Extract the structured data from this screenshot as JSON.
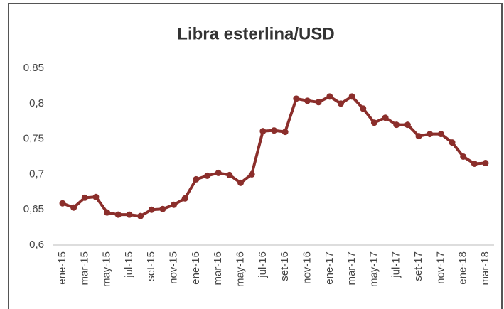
{
  "chart_data": {
    "type": "line",
    "title": "Libra esterlina/USD",
    "categories": [
      "ene-15",
      null,
      "mar-15",
      null,
      "may-15",
      null,
      "jul-15",
      null,
      "set-15",
      null,
      "nov-15",
      null,
      "ene-16",
      null,
      "mar-16",
      null,
      "may-16",
      null,
      "jul-16",
      null,
      "set-16",
      null,
      "nov-16",
      null,
      "ene-17",
      null,
      "mar-17",
      null,
      "may-17",
      null,
      "jul-17",
      null,
      "set-17",
      null,
      "nov-17",
      null,
      "ene-18",
      null,
      "mar-18"
    ],
    "series": [
      {
        "name": "Libra esterlina/USD",
        "color": "#8b2e2b",
        "values": [
          0.659,
          0.653,
          0.667,
          0.668,
          0.646,
          0.643,
          0.643,
          0.641,
          0.65,
          0.651,
          0.657,
          0.666,
          0.693,
          0.698,
          0.702,
          0.699,
          0.688,
          0.7,
          0.761,
          0.762,
          0.76,
          0.807,
          0.804,
          0.802,
          0.81,
          0.8,
          0.81,
          0.793,
          0.773,
          0.78,
          0.77,
          0.77,
          0.754,
          0.757,
          0.757,
          0.745,
          0.725,
          0.715,
          0.716
        ]
      }
    ],
    "ylim": [
      0.6,
      0.85
    ],
    "yticks": [
      {
        "value": 0.6,
        "label": "0,6"
      },
      {
        "value": 0.65,
        "label": "0,65"
      },
      {
        "value": 0.7,
        "label": "0,7"
      },
      {
        "value": 0.75,
        "label": "0,75"
      },
      {
        "value": 0.8,
        "label": "0,8"
      },
      {
        "value": 0.85,
        "label": "0,85"
      }
    ],
    "grid": false
  }
}
